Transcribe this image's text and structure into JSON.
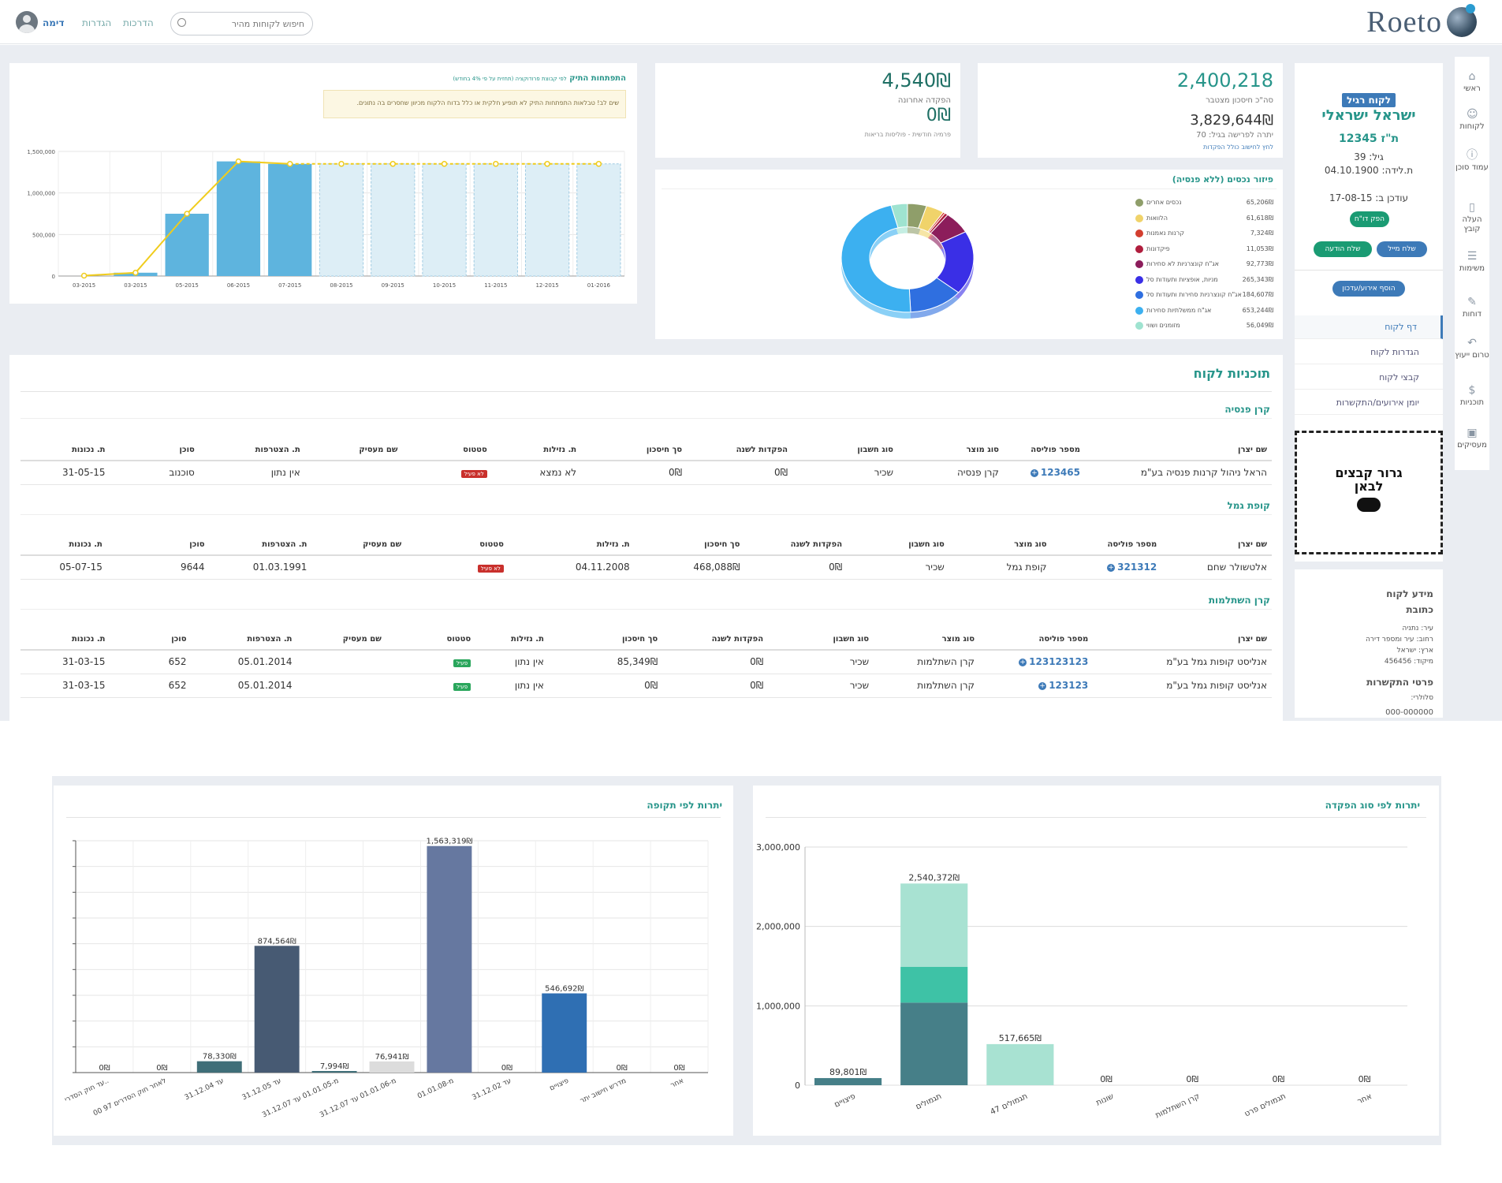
{
  "header": {
    "logo_text": "Roeto",
    "search_placeholder": "חיפוש לקוחות מהיר",
    "links": [
      "הדרכות",
      "הגדרות"
    ],
    "user_name": "דימה"
  },
  "rail": [
    {
      "label": "ראשי",
      "icon": "home-icon"
    },
    {
      "label": "לקוחות",
      "icon": "users-icon"
    },
    {
      "label": "עמוד סוכן",
      "icon": "info-icon"
    },
    {
      "label": "העלה קובץ",
      "icon": "file-icon"
    },
    {
      "label": "משימות",
      "icon": "tasks-icon"
    },
    {
      "label": "דוחות",
      "icon": "wrench-icon"
    },
    {
      "label": "טרום ייעוץ",
      "icon": "reply-icon"
    },
    {
      "label": "תוכניות",
      "icon": "dollar-icon"
    },
    {
      "label": "מעסיקים",
      "icon": "briefcase-icon"
    }
  ],
  "customer": {
    "tag": "לקוח רגיל",
    "name": "ישראל ישראלי",
    "id": "ת\"ז 12345",
    "age": "גיל: 39",
    "birth": "ת.לידה: 04.10.1900",
    "updated": "עודכן ב: 17-08-15",
    "report_btn": "הפק דו\"ח",
    "send_msg_btn": "שלח הודעה",
    "send_mail_btn": "שלח מייל",
    "add_event_btn": "הוסף אירוע/עדכון",
    "nav": [
      "דף לקוח",
      "הגדרות לקוח",
      "קבצי לקוח",
      "יומן אירועים/התקשרות"
    ],
    "drop_text": "גרור קבצים לבאן",
    "info_title": "מידע לקוח",
    "address_title": "כתובת",
    "city": "עיר: נתניה",
    "street": "רחוב: עיר ומספר דירה",
    "country": "ארץ: ישראל",
    "zip": "מיקוד: 456456",
    "contact_title": "פרטי התקשרות",
    "cell_label": "סלולרי:",
    "cell": "000-000000"
  },
  "kpi1": {
    "total": "2,400,218",
    "total_label": "סה\"כ חיסכון מצטבר",
    "annuity": "3,829,644₪",
    "annuity_label": "יתרה לפרישה בגיל: 70",
    "annuity_note": "לחץ לחישוב כולל הפקדות"
  },
  "kpi2": {
    "deposit": "4,540₪",
    "deposit_label": "הפקדה אחרונה",
    "premium": "0₪",
    "premium_label": "פרמיה חודשית - פוליסות בריאות"
  },
  "portfolio": {
    "title": "התפתחות התיק",
    "subtitle": "לפי קבוצת פרודוקציה (תחזית על פי 4% בחודש)",
    "notice": "שים לב! טבלאות התפתחות התיק לא תופיע חלקית או כלל בדוח הלקוח מכיוון שחסרים בה נתונים."
  },
  "pie": {
    "title": "פיזור נכסים (ללא פנסיה)",
    "items": [
      {
        "label": "נכסים אחרים",
        "value": "65,206₪",
        "color": "#8f9e6a"
      },
      {
        "label": "הלוואות",
        "value": "61,618₪",
        "color": "#f0d36a"
      },
      {
        "label": "קרנות נאמנות",
        "value": "7,324₪",
        "color": "#d33f2f"
      },
      {
        "label": "פיקדונות",
        "value": "11,053₪",
        "color": "#b01e3e"
      },
      {
        "label": "אג\"ח קונצרניות לא סחירות",
        "value": "92,773₪",
        "color": "#8c1d5b"
      },
      {
        "label": "מניות, אופציות ותעודות סל",
        "value": "265,343₪",
        "color": "#3a2fe6"
      },
      {
        "label": "אג\"ח קונצרניות סחירות ותעודות סל",
        "value": "184,607₪",
        "color": "#2f6fe0"
      },
      {
        "label": "אג\"ח ממשלתיות סחירות",
        "value": "653,244₪",
        "color": "#3cb0f0"
      },
      {
        "label": "מזומנים ושווי",
        "value": "56,049₪",
        "color": "#9fe3d0"
      }
    ]
  },
  "chart_data": [
    {
      "type": "bar",
      "title": "התפתחות התיק",
      "categories": [
        "03-2015",
        "03-2015",
        "05-2015",
        "06-2015",
        "07-2015",
        "08-2015",
        "09-2015",
        "10-2015",
        "11-2015",
        "12-2015",
        "01-2016"
      ],
      "series": [
        {
          "values": [
            0,
            40000,
            750000,
            1380000,
            1350000,
            1350000,
            1350000,
            1350000,
            1350000,
            1350000,
            1350000
          ]
        }
      ],
      "ylim": [
        0,
        1500000
      ],
      "yticks": [
        "1,500,000",
        "1,000,000",
        "500,000",
        "0"
      ]
    },
    {
      "type": "bar",
      "title": "יתרות לפי תקופה",
      "categories": [
        "עד חוק הסדרי..",
        "לאחר חוק הסדרים 97 00",
        "עד 31.12.04",
        "עד 31.12.05",
        "מ-01.01.05 עד 31.12.07",
        "מ-01.01.06 עד 31.12.07",
        "מ-01.01.08",
        "עד 31.12.02",
        "פיצויים",
        "מדרש חישוב יתר",
        "אחר"
      ],
      "values": [
        0,
        0,
        78330,
        874564,
        7994,
        76941,
        1563319,
        0,
        546692,
        0,
        0
      ],
      "labels": [
        "0₪",
        "0₪",
        "78,330₪",
        "874,564₪",
        "7,994₪",
        "76,941₪",
        "1,563,319₪",
        "0₪",
        "546,692₪",
        "0₪",
        "0₪"
      ],
      "colors": [
        "#3f6e78",
        "#3f6e78",
        "#3f6e78",
        "#475a73",
        "#3f6e78",
        "#dcdcdc",
        "#6678a0",
        "#3f6e78",
        "#2f6fb3",
        "#3f6e78",
        "#3f6e78"
      ]
    },
    {
      "type": "bar",
      "title": "יתרות לפי סוג הפקדה",
      "categories": [
        "פיצויים",
        "תגמולים",
        "תגמולים 47",
        "שונות",
        "קרן השתלמות",
        "תגמולים פרט",
        "אחר"
      ],
      "series": [
        {
          "values": [
            89801,
            1040000,
            517665,
            0,
            0,
            0,
            0
          ],
          "color": "#467f88"
        },
        {
          "values": [
            0,
            450000,
            0,
            0,
            0,
            0,
            0
          ],
          "color": "#3ec2a6"
        },
        {
          "values": [
            0,
            1050372,
            0,
            0,
            0,
            0,
            0
          ],
          "color": "#a8e2d2"
        }
      ],
      "labels": [
        "89,801₪",
        "2,540,372₪",
        "517,665₪",
        "0₪",
        "0₪",
        "0₪",
        "0₪"
      ],
      "ylim": [
        0,
        3000000
      ],
      "yticks": [
        "3,000,000",
        "2,000,000",
        "1,000,000",
        "0"
      ]
    }
  ],
  "plans": {
    "title": "תוכניות לקוח",
    "pension": {
      "title": "קרן פנסיה",
      "headers": [
        "שם יצרן",
        "מספר פוליסה",
        "סוג מוצר",
        "סוג חשבון",
        "הפקדות לשנה",
        "סך חיסכון",
        "ת. נזילות",
        "סטטוס",
        "שם מעסיק",
        "ת. הצטרפות",
        "סוכן",
        "ת. נכונות"
      ],
      "rows": [
        [
          "הראל ניהול קרנות פנסיה בע\"מ",
          "123465",
          "קרן פנסיה",
          "שכיר",
          "0₪",
          "0₪",
          "לא נמצא",
          "לא פעיל",
          "",
          "אין נתון",
          "סוכנוב",
          "31-05-15"
        ]
      ]
    },
    "gemel": {
      "title": "קופת גמל",
      "headers": [
        "שם יצרן",
        "מספר פוליסה",
        "סוג מוצר",
        "סוג חשבון",
        "הפקדות לשנה",
        "סך חיסכון",
        "ת. נזילות",
        "סטטוס",
        "שם מעסיק",
        "ת. הצטרפות",
        "סוכן",
        "ת. נכונות"
      ],
      "rows": [
        [
          "אלטשולר שחם",
          "321312",
          "קופת גמל",
          "שכיר",
          "0₪",
          "468,088₪",
          "04.11.2008",
          "לא פעיל",
          "",
          "01.03.1991",
          "9644",
          "05-07-15"
        ]
      ]
    },
    "hishtalmut": {
      "title": "קרן השתלמות",
      "headers": [
        "שם יצרן",
        "מספר פוליסה",
        "סוג מוצר",
        "סוג חשבון",
        "הפקדות לשנה",
        "סך חיסכון",
        "ת. נזילות",
        "סטטוס",
        "שם מעסיק",
        "ת. הצטרפות",
        "סוכן",
        "ת. נכונות"
      ],
      "rows": [
        [
          "אנליסט קופות גמל בע\"מ",
          "123123123",
          "קרן השתלמות",
          "שכיר",
          "0₪",
          "85,349₪",
          "אין נתון",
          "פעיל",
          "",
          "05.01.2014",
          "652",
          "31-03-15"
        ],
        [
          "אנליסט קופות גמל בע\"מ",
          "123123",
          "קרן השתלמות",
          "שכיר",
          "0₪",
          "0₪",
          "אין נתון",
          "פעיל",
          "",
          "05.01.2014",
          "652",
          "31-03-15"
        ]
      ]
    }
  }
}
